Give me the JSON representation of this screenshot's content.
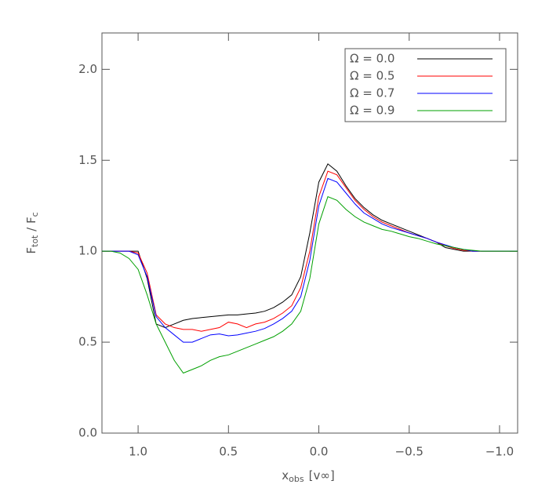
{
  "chart_data": {
    "type": "line",
    "x_label": {
      "main": "x",
      "sub": "obs",
      "rest": "[v∞]"
    },
    "y_label": {
      "main": "F",
      "sub": "tot",
      "mid": " / F",
      "sub2": "c"
    },
    "x": [
      1.2,
      1.15,
      1.1,
      1.05,
      1.0,
      0.95,
      0.9,
      0.85,
      0.8,
      0.75,
      0.7,
      0.65,
      0.6,
      0.55,
      0.5,
      0.45,
      0.4,
      0.35,
      0.3,
      0.25,
      0.2,
      0.15,
      0.1,
      0.05,
      0.0,
      -0.05,
      -0.1,
      -0.15,
      -0.2,
      -0.25,
      -0.3,
      -0.35,
      -0.4,
      -0.45,
      -0.5,
      -0.55,
      -0.6,
      -0.65,
      -0.7,
      -0.75,
      -0.8,
      -0.85,
      -0.9,
      -0.95,
      -1.0,
      -1.05,
      -1.1
    ],
    "series": [
      {
        "name": "Ω = 0.0",
        "color": "#000000",
        "values": [
          1.0,
          1.0,
          1.0,
          1.0,
          1.0,
          0.85,
          0.6,
          0.58,
          0.6,
          0.62,
          0.63,
          0.635,
          0.64,
          0.645,
          0.65,
          0.65,
          0.655,
          0.66,
          0.67,
          0.69,
          0.72,
          0.76,
          0.86,
          1.1,
          1.38,
          1.48,
          1.44,
          1.36,
          1.29,
          1.24,
          1.2,
          1.17,
          1.15,
          1.13,
          1.11,
          1.09,
          1.07,
          1.05,
          1.02,
          1.01,
          1.0,
          1.0,
          1.0,
          1.0,
          1.0,
          1.0,
          1.0
        ]
      },
      {
        "name": "Ω = 0.5",
        "color": "#ff0000",
        "values": [
          1.0,
          1.0,
          1.0,
          1.0,
          0.99,
          0.88,
          0.65,
          0.6,
          0.58,
          0.57,
          0.57,
          0.56,
          0.57,
          0.58,
          0.61,
          0.6,
          0.58,
          0.6,
          0.61,
          0.63,
          0.66,
          0.7,
          0.8,
          1.0,
          1.3,
          1.44,
          1.42,
          1.35,
          1.28,
          1.23,
          1.19,
          1.16,
          1.14,
          1.12,
          1.1,
          1.085,
          1.07,
          1.05,
          1.03,
          1.015,
          1.005,
          1.0,
          1.0,
          1.0,
          1.0,
          1.0,
          1.0
        ]
      },
      {
        "name": "Ω = 0.7",
        "color": "#0000ff",
        "values": [
          1.0,
          1.0,
          1.0,
          1.0,
          0.98,
          0.86,
          0.64,
          0.58,
          0.54,
          0.5,
          0.5,
          0.52,
          0.54,
          0.545,
          0.535,
          0.54,
          0.55,
          0.56,
          0.575,
          0.6,
          0.63,
          0.67,
          0.75,
          0.95,
          1.25,
          1.4,
          1.38,
          1.32,
          1.26,
          1.21,
          1.18,
          1.15,
          1.13,
          1.115,
          1.1,
          1.085,
          1.07,
          1.05,
          1.035,
          1.02,
          1.01,
          1.0,
          1.0,
          1.0,
          1.0,
          1.0,
          1.0
        ]
      },
      {
        "name": "Ω = 0.9",
        "color": "#00a000",
        "values": [
          1.0,
          1.0,
          0.99,
          0.96,
          0.9,
          0.76,
          0.6,
          0.5,
          0.4,
          0.33,
          0.35,
          0.37,
          0.4,
          0.42,
          0.43,
          0.45,
          0.47,
          0.49,
          0.51,
          0.53,
          0.56,
          0.6,
          0.67,
          0.85,
          1.15,
          1.3,
          1.28,
          1.23,
          1.19,
          1.16,
          1.14,
          1.12,
          1.11,
          1.095,
          1.08,
          1.07,
          1.055,
          1.04,
          1.03,
          1.02,
          1.01,
          1.005,
          1.0,
          1.0,
          1.0,
          1.0,
          1.0
        ]
      }
    ],
    "xlim": [
      1.2,
      -1.1
    ],
    "ylim": [
      0,
      2.2
    ],
    "xticks": [
      {
        "value": 1.0,
        "label": "1.0"
      },
      {
        "value": 0.5,
        "label": "0.5"
      },
      {
        "value": 0.0,
        "label": "0.0"
      },
      {
        "value": -0.5,
        "label": "−0.5"
      },
      {
        "value": -1.0,
        "label": "−1.0"
      }
    ],
    "yticks": [
      {
        "value": 0.0,
        "label": "0.0"
      },
      {
        "value": 0.5,
        "label": "0.5"
      },
      {
        "value": 1.0,
        "label": "1.0"
      },
      {
        "value": 1.5,
        "label": "1.5"
      },
      {
        "value": 2.0,
        "label": "2.0"
      }
    ],
    "legend": "upper right"
  }
}
